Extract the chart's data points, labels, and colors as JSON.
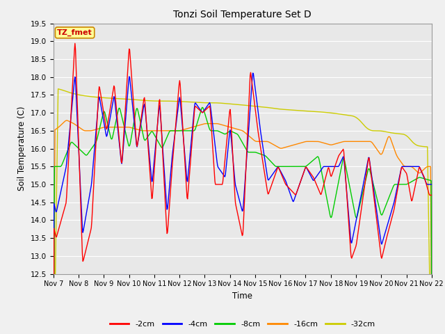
{
  "title": "Tonzi Soil Temperature Set D",
  "xlabel": "Time",
  "ylabel": "Soil Temperature (C)",
  "ylim": [
    12.5,
    19.5
  ],
  "x_labels": [
    "Nov 7",
    "Nov 8",
    "Nov 9",
    "Nov 10",
    "Nov 11",
    "Nov 12",
    "Nov 13",
    "Nov 14",
    "Nov 15",
    "Nov 16",
    "Nov 17",
    "Nov 18",
    "Nov 19",
    "Nov 20",
    "Nov 21",
    "Nov 22"
  ],
  "legend_labels": [
    "-2cm",
    "-4cm",
    "-8cm",
    "-16cm",
    "-32cm"
  ],
  "line_colors": [
    "#ff0000",
    "#0000ff",
    "#00cc00",
    "#ff8800",
    "#cccc00"
  ],
  "plot_bg_color": "#e8e8e8",
  "fig_bg_color": "#f0f0f0",
  "annotation_text": "TZ_fmet",
  "annotation_bg": "#ffff99",
  "annotation_border": "#cc8800",
  "yticks": [
    12.5,
    13.0,
    13.5,
    14.0,
    14.5,
    15.0,
    15.5,
    16.0,
    16.5,
    17.0,
    17.5,
    18.0,
    18.5,
    19.0,
    19.5
  ]
}
